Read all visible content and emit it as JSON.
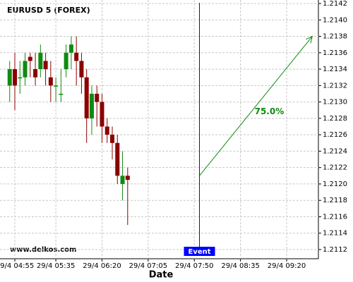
{
  "chart_data": {
    "type": "candlestick",
    "title": "EURUSD 5 (FOREX)",
    "watermark": "www.delkos.com",
    "x_label": "Date",
    "x": [
      "29/4 04:50",
      "29/4 04:55",
      "29/4 05:00",
      "29/4 05:05",
      "29/4 05:10",
      "29/4 05:15",
      "29/4 05:20",
      "29/4 05:25",
      "29/4 05:30",
      "29/4 05:35",
      "29/4 05:40",
      "29/4 05:45",
      "29/4 05:50",
      "29/4 05:55",
      "29/4 06:00",
      "29/4 06:05",
      "29/4 06:10",
      "29/4 06:15",
      "29/4 06:20",
      "29/4 06:25",
      "29/4 06:30",
      "29/4 06:35",
      "29/4 06:40",
      "29/4 06:45"
    ],
    "open": [
      1.2132,
      1.2134,
      1.2133,
      1.2133,
      1.21355,
      1.2134,
      1.2134,
      1.2135,
      1.2133,
      1.2132,
      1.2131,
      1.2134,
      1.2136,
      1.2136,
      1.2135,
      1.2133,
      1.2128,
      1.2131,
      1.213,
      1.2127,
      1.2126,
      1.2125,
      1.212,
      1.2121
    ],
    "high": [
      1.2135,
      1.2136,
      1.2135,
      1.2136,
      1.2136,
      1.2136,
      1.2137,
      1.2136,
      1.2135,
      1.2133,
      1.2134,
      1.2137,
      1.2138,
      1.2138,
      1.2136,
      1.2134,
      1.2132,
      1.2132,
      1.2131,
      1.2128,
      1.2127,
      1.2126,
      1.2124,
      1.2122
    ],
    "low": [
      1.213,
      1.2129,
      1.2131,
      1.2132,
      1.2133,
      1.2132,
      1.2133,
      1.2132,
      1.213,
      1.213,
      1.213,
      1.2133,
      1.2134,
      1.2132,
      1.2131,
      1.2125,
      1.2126,
      1.2127,
      1.2125,
      1.2125,
      1.2123,
      1.212,
      1.2118,
      1.2115
    ],
    "close": [
      1.2134,
      1.2132,
      1.2133,
      1.2135,
      1.2135,
      1.2133,
      1.2136,
      1.2134,
      1.2132,
      1.2132,
      1.2131,
      1.2136,
      1.2137,
      1.2135,
      1.2133,
      1.2128,
      1.2131,
      1.213,
      1.2127,
      1.2126,
      1.2125,
      1.2121,
      1.2121,
      1.21205
    ],
    "up_color": "#108a10",
    "down_color": "#8b0000",
    "ylim": [
      1.2111,
      1.2142
    ],
    "yticks": [
      1.2112,
      1.2114,
      1.2116,
      1.2118,
      {
        "value": 1.212,
        "label": "1.2120"
      },
      1.2122,
      1.2124,
      1.2126,
      1.2128,
      {
        "value": 1.213,
        "label": "1.2130"
      },
      1.2132,
      1.2134,
      1.2136,
      1.2138,
      {
        "value": 1.214,
        "label": "1.2140"
      },
      1.2142
    ],
    "xticks": [
      "29/4 04:55",
      "29/4 05:35",
      "29/4 06:20",
      "29/4 07:05",
      "29/4 07:50",
      "29/4 08:35",
      "29/4 09:20"
    ],
    "grid": true,
    "event": {
      "label": "Event",
      "x": "29/4 07:55",
      "color": "#0000ff"
    },
    "arrow": {
      "x": [
        "29/4 07:55",
        "29/4 09:45"
      ],
      "y": [
        1.2121,
        1.2138
      ],
      "label": "75.0%",
      "color": "#108a10"
    }
  }
}
